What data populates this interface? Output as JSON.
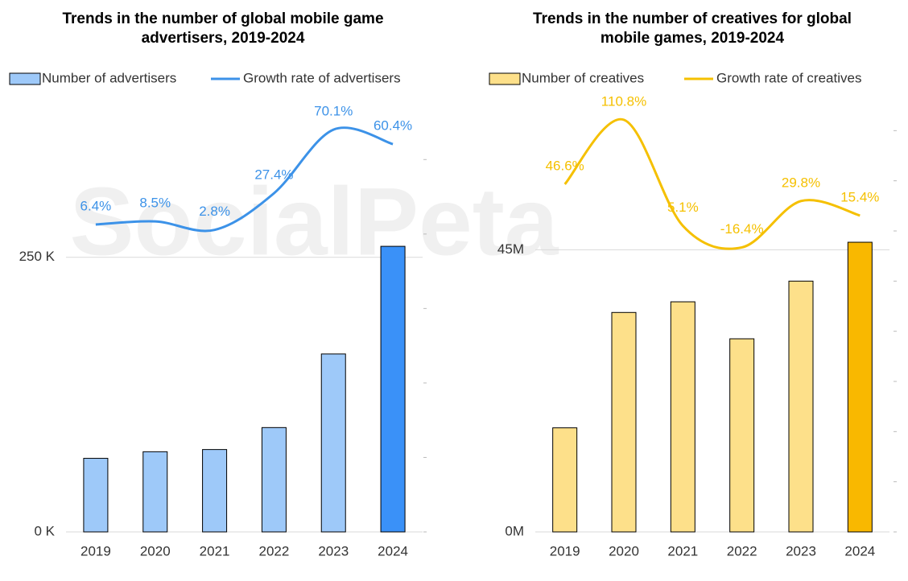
{
  "watermark": "SocialPeta",
  "chart_data": [
    {
      "type": "bar-line",
      "title": "Trends in the number of global mobile game advertisers, 2019-2024",
      "categories": [
        "2019",
        "2020",
        "2021",
        "2022",
        "2023",
        "2024"
      ],
      "ylim": [
        0,
        400
      ],
      "yticks": [
        {
          "value": 0,
          "label": "0 K"
        },
        {
          "value": 250,
          "label": "250 K"
        }
      ],
      "y2lim": [
        -200,
        95
      ],
      "y2ticks": [
        -200,
        -150,
        -100,
        -50,
        0,
        50
      ],
      "grid": true,
      "series": [
        {
          "name": "Number of advertisers",
          "kind": "bar",
          "color": "#9ec9f9",
          "highlight_color": "#3a91f8",
          "values": [
            67,
            73,
            75,
            95,
            162,
            260
          ]
        },
        {
          "name": "Growth rate of advertisers",
          "kind": "line",
          "axis": "y2",
          "color": "#3c92e8",
          "values": [
            6.4,
            8.5,
            2.8,
            27.4,
            70.1,
            60.4
          ],
          "value_labels": [
            "6.4%",
            "8.5%",
            "2.8%",
            "27.4%",
            "70.1%",
            "60.4%"
          ]
        }
      ]
    },
    {
      "type": "bar-line",
      "title": "Trends in the number of creatives for global mobile games, 2019-2024",
      "categories": [
        "2019",
        "2020",
        "2021",
        "2022",
        "2023",
        "2024"
      ],
      "ylim": [
        0,
        72
      ],
      "yticks": [
        {
          "value": 0,
          "label": "0M"
        },
        {
          "value": 45,
          "label": "45M"
        }
      ],
      "y2lim": [
        -300,
        150
      ],
      "y2ticks": [
        -300,
        -250,
        -200,
        -150,
        -100,
        -50,
        0,
        50,
        100
      ],
      "grid": true,
      "series": [
        {
          "name": "Number of creatives",
          "kind": "bar",
          "color": "#fde08a",
          "highlight_color": "#f9b800",
          "values": [
            16.6,
            35.0,
            36.7,
            30.8,
            40.0,
            46.2
          ]
        },
        {
          "name": "Growth rate of creatives",
          "kind": "line",
          "axis": "y2",
          "color": "#f5c000",
          "values": [
            46.6,
            110.8,
            5.1,
            -16.4,
            29.8,
            15.4
          ],
          "value_labels": [
            "46.6%",
            "110.8%",
            "5.1%",
            "-16.4%",
            "29.8%",
            "15.4%"
          ]
        }
      ]
    }
  ]
}
